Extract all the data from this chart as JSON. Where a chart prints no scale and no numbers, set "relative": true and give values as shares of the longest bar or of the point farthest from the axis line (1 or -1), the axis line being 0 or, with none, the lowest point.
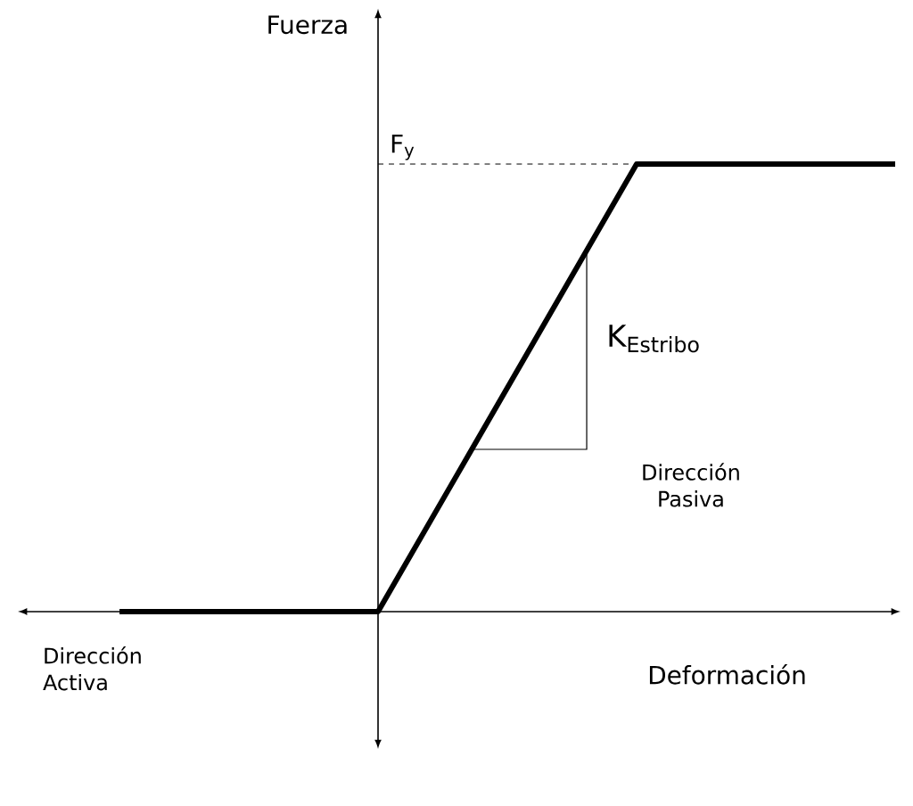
{
  "chart_data": {
    "type": "line",
    "relative": true,
    "categories": [
      null,
      null,
      null,
      null
    ],
    "series": [
      {
        "values": [
          0,
          0,
          1,
          1
        ],
        "color": "#000000"
      }
    ],
    "xlabel": "Deformación",
    "ref_lines": [
      {
        "axis": "y",
        "value": 1,
        "label": "F$_{y}$",
        "line_style": "dashed",
        "color": "#000000"
      }
    ],
    "annotations": [
      "K$_{Estribo}$",
      "Dirección Pasiva",
      "Dirección Activa",
      "Fuerza"
    ],
    "legend": false,
    "marker": "none",
    "line_style": "solid"
  }
}
